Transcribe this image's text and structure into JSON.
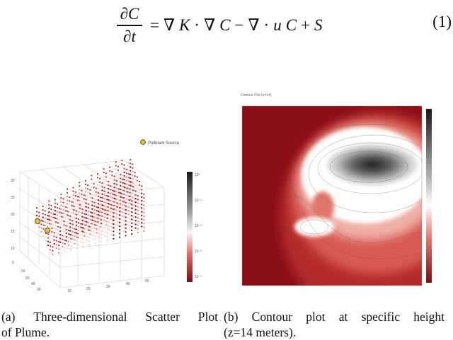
{
  "equation": {
    "lhs_numerator": "∂C",
    "lhs_denominator": "∂t",
    "rhs": [
      "=",
      "∇",
      "K",
      "·",
      "∇",
      "C",
      "−",
      "∇",
      "·",
      "u",
      "C",
      "+",
      "S"
    ],
    "number": "(1)"
  },
  "figure_a": {
    "legend_label": "Pollutant Source",
    "colorbar_ticks": [
      "10⁰",
      "10⁻¹",
      "10⁻²",
      "10⁻³",
      "10⁻⁴"
    ],
    "caption": "(a) Three-dimensional Scatter Plot of Plume.",
    "caption_line1": [
      "(a)",
      "Three-dimensional",
      "Scatter",
      "Plot"
    ],
    "caption_line2": "of Plume."
  },
  "figure_b": {
    "title": "Contour Plot (z=14)",
    "caption": "(b) Contour plot at specific height (z=14 meters).",
    "caption_line1": [
      "(b)",
      "Contour",
      "plot",
      "at",
      "specific",
      "height"
    ],
    "caption_line2": "(z=14 meters)."
  },
  "colors": {
    "dark_red": "#8b0f17",
    "mid_red": "#d9534f",
    "white": "#ffffff",
    "dark_grey": "#2b2b2b",
    "source_marker": "#e7c22e"
  }
}
